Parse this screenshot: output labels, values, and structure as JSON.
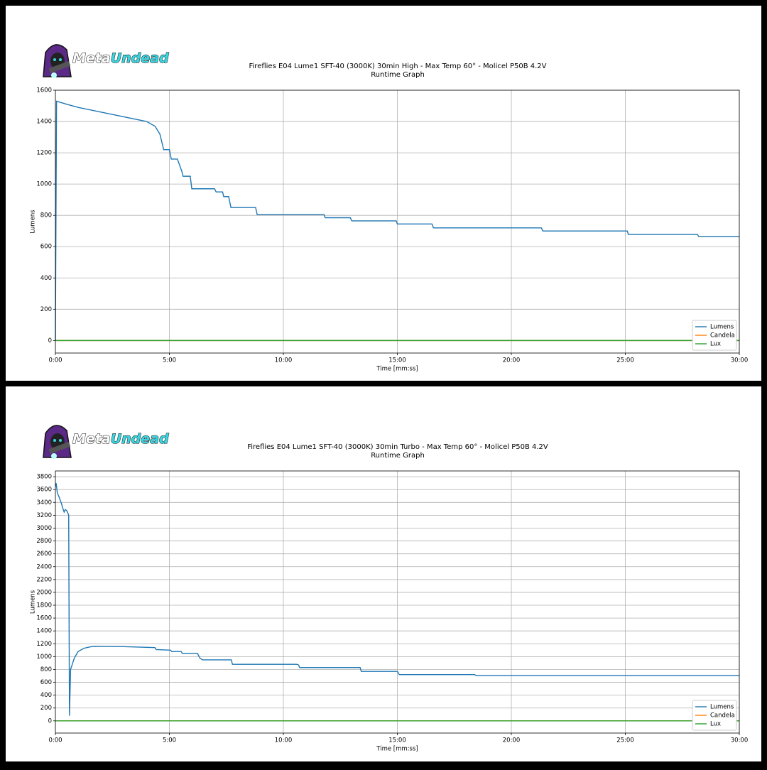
{
  "logo": {
    "first": "Meta",
    "second": "Undead"
  },
  "chart_data": [
    {
      "type": "line",
      "title": "Fireflies E04 Lume1 SFT-40 (3000K) 30min High - Max Temp 60° - Molicel P50B 4.2V",
      "subtitle": "Runtime Graph",
      "x_label": "Time [mm:ss]",
      "y_label": "Lumens",
      "x": [
        0,
        3,
        30,
        60,
        120,
        180,
        240,
        262,
        275,
        285,
        300,
        305,
        321,
        333,
        336,
        355,
        359,
        419,
        423,
        440,
        443,
        456,
        462,
        527,
        531,
        707,
        710,
        776,
        780,
        897,
        900,
        991,
        995,
        1279,
        1283,
        1505,
        1508,
        1690,
        1693,
        1800
      ],
      "series": [
        {
          "name": "Lumens",
          "color": "#1f77b4",
          "values": [
            0,
            1530,
            1510,
            1490,
            1460,
            1430,
            1400,
            1370,
            1320,
            1220,
            1220,
            1160,
            1160,
            1080,
            1050,
            1050,
            970,
            970,
            950,
            950,
            920,
            920,
            850,
            850,
            805,
            805,
            785,
            785,
            765,
            765,
            745,
            745,
            720,
            720,
            700,
            700,
            678,
            678,
            665,
            665
          ]
        },
        {
          "name": "Candela",
          "color": "#ff7f0e",
          "values": [
            0,
            0,
            0,
            0,
            0,
            0,
            0,
            0,
            0,
            0,
            0,
            0,
            0,
            0,
            0,
            0,
            0,
            0,
            0,
            0,
            0,
            0,
            0,
            0,
            0,
            0,
            0,
            0,
            0,
            0,
            0,
            0,
            0,
            0,
            0,
            0,
            0,
            0,
            0,
            0
          ]
        },
        {
          "name": "Lux",
          "color": "#2ca02c",
          "values": [
            0,
            0,
            0,
            0,
            0,
            0,
            0,
            0,
            0,
            0,
            0,
            0,
            0,
            0,
            0,
            0,
            0,
            0,
            0,
            0,
            0,
            0,
            0,
            0,
            0,
            0,
            0,
            0,
            0,
            0,
            0,
            0,
            0,
            0,
            0,
            0,
            0,
            0,
            0,
            0
          ]
        }
      ],
      "xlim": [
        0,
        1800
      ],
      "xticks": [
        {
          "value": 0,
          "label": "0:00"
        },
        {
          "value": 300,
          "label": "5:00"
        },
        {
          "value": 600,
          "label": "10:00"
        },
        {
          "value": 900,
          "label": "15:00"
        },
        {
          "value": 1200,
          "label": "20:00"
        },
        {
          "value": 1500,
          "label": "25:00"
        },
        {
          "value": 1800,
          "label": "30:00"
        }
      ],
      "ylim": [
        -80,
        1600
      ],
      "yticks": [
        0,
        200,
        400,
        600,
        800,
        1000,
        1200,
        1400,
        1600
      ],
      "grid": true,
      "legend": "lower right"
    },
    {
      "type": "line",
      "title": "Fireflies E04 Lume1 SFT-40 (3000K) 30min Turbo - Max Temp 60° - Molicel P50B 4.2V",
      "subtitle": "Runtime Graph",
      "x_label": "Time [mm:ss]",
      "y_label": "Lumens",
      "x": [
        0,
        2,
        5,
        10,
        15,
        20,
        23,
        26,
        30,
        34,
        35,
        37,
        40,
        50,
        60,
        75,
        90,
        100,
        180,
        262,
        265,
        303,
        306,
        331,
        334,
        374,
        380,
        387,
        463,
        466,
        635,
        640,
        643,
        802,
        805,
        900,
        905,
        1103,
        1108,
        1800
      ],
      "series": [
        {
          "name": "Lumens",
          "color": "#1f77b4",
          "values": [
            3650,
            3700,
            3550,
            3480,
            3400,
            3300,
            3250,
            3290,
            3270,
            3220,
            3200,
            80,
            800,
            980,
            1080,
            1130,
            1150,
            1160,
            1155,
            1140,
            1110,
            1100,
            1080,
            1080,
            1050,
            1050,
            980,
            950,
            950,
            880,
            880,
            870,
            830,
            830,
            770,
            770,
            720,
            720,
            705,
            705
          ]
        },
        {
          "name": "Candela",
          "color": "#ff7f0e",
          "values": [
            0,
            0,
            0,
            0,
            0,
            0,
            0,
            0,
            0,
            0,
            0,
            0,
            0,
            0,
            0,
            0,
            0,
            0,
            0,
            0,
            0,
            0,
            0,
            0,
            0,
            0,
            0,
            0,
            0,
            0,
            0,
            0,
            0,
            0,
            0,
            0,
            0,
            0,
            0,
            0
          ]
        },
        {
          "name": "Lux",
          "color": "#2ca02c",
          "values": [
            0,
            0,
            0,
            0,
            0,
            0,
            0,
            0,
            0,
            0,
            0,
            0,
            0,
            0,
            0,
            0,
            0,
            0,
            0,
            0,
            0,
            0,
            0,
            0,
            0,
            0,
            0,
            0,
            0,
            0,
            0,
            0,
            0,
            0,
            0,
            0,
            0,
            0,
            0,
            0
          ]
        }
      ],
      "xlim": [
        0,
        1800
      ],
      "xticks": [
        {
          "value": 0,
          "label": "0:00"
        },
        {
          "value": 300,
          "label": "5:00"
        },
        {
          "value": 600,
          "label": "10:00"
        },
        {
          "value": 900,
          "label": "15:00"
        },
        {
          "value": 1200,
          "label": "20:00"
        },
        {
          "value": 1500,
          "label": "25:00"
        },
        {
          "value": 1800,
          "label": "30:00"
        }
      ],
      "ylim": [
        -190,
        3890
      ],
      "yticks": [
        0,
        200,
        400,
        600,
        800,
        1000,
        1200,
        1400,
        1600,
        1800,
        2000,
        2200,
        2400,
        2600,
        2800,
        3000,
        3200,
        3400,
        3600,
        3800
      ],
      "grid": true,
      "legend": "lower right"
    }
  ]
}
